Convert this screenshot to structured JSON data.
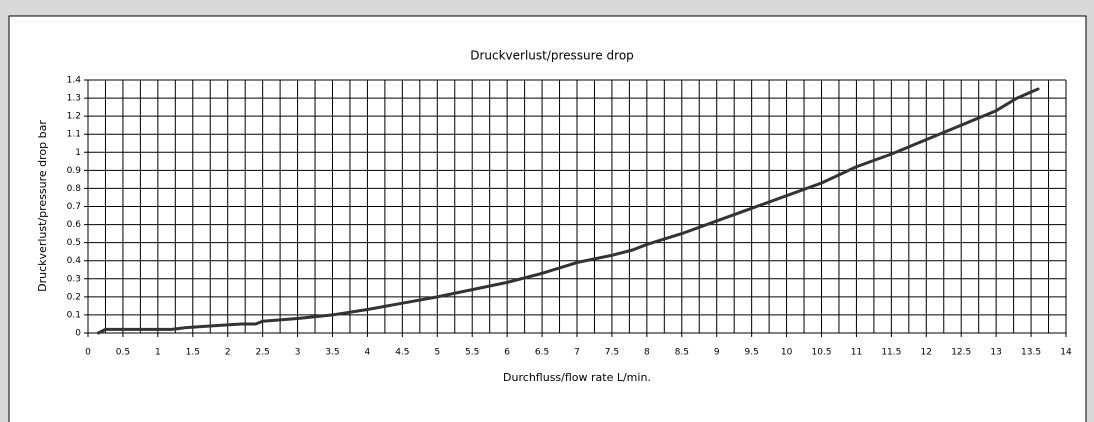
{
  "chart_data": {
    "type": "line",
    "title": "Druckverlust/pressure drop",
    "xlabel": "Durchfluss/flow rate L/min.",
    "ylabel": "Druckverlust/pressure drop bar",
    "x": [
      0.15,
      0.25,
      1.2,
      1.4,
      1.8,
      2,
      2.2,
      2.4,
      2.5,
      3,
      3.5,
      4,
      4.5,
      5,
      5.5,
      6,
      6.5,
      7,
      7.5,
      7.8,
      8,
      8.5,
      9,
      9.5,
      10,
      10.5,
      11,
      11.5,
      12,
      12.5,
      13,
      13.3,
      13.6
    ],
    "values": [
      0,
      0.02,
      0.02,
      0.03,
      0.04,
      0.045,
      0.05,
      0.05,
      0.065,
      0.08,
      0.1,
      0.13,
      0.165,
      0.2,
      0.24,
      0.28,
      0.33,
      0.39,
      0.43,
      0.46,
      0.49,
      0.55,
      0.62,
      0.69,
      0.76,
      0.83,
      0.92,
      0.99,
      1.07,
      1.15,
      1.23,
      1.3,
      1.35
    ],
    "color": "#333333",
    "xlim": [
      0,
      14
    ],
    "xticks": [
      0,
      0.5,
      1,
      1.5,
      2,
      2.5,
      3,
      3.5,
      4,
      4.5,
      5,
      5.5,
      6,
      6.5,
      7,
      7.5,
      8,
      8.5,
      9,
      9.5,
      10,
      10.5,
      11,
      11.5,
      12,
      12.5,
      13,
      13.5,
      14
    ],
    "xminor": [
      0.25,
      0.75,
      1.25,
      1.75,
      2.25,
      2.75,
      3.25,
      3.75,
      4.25,
      4.75,
      5.25,
      5.75,
      6.25,
      6.75,
      7.25,
      7.75,
      8.25,
      8.75,
      9.25,
      9.75,
      10.25,
      10.75,
      11.25,
      11.75,
      12.25,
      12.75,
      13.25,
      13.75
    ],
    "ylim": [
      0,
      1.4
    ],
    "yticks": [
      0,
      0.1,
      0.2,
      0.3,
      0.4,
      0.5,
      0.6,
      0.7,
      0.8,
      0.9,
      1,
      1.1,
      1.2,
      1.3,
      1.4
    ],
    "grid": true
  }
}
